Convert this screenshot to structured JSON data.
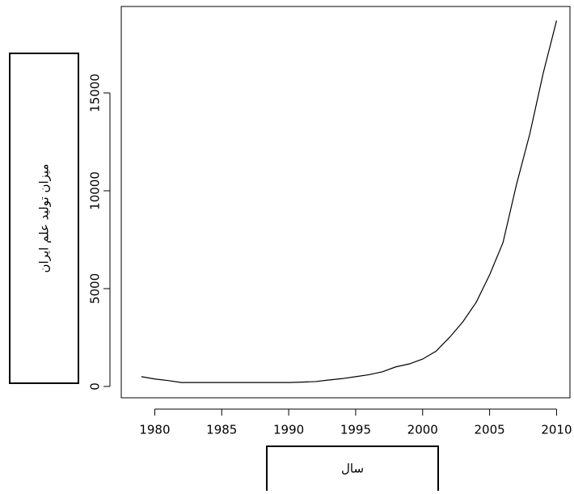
{
  "chart_data": {
    "type": "line",
    "x_label": "سال",
    "y_label": "میزان تولید علم ایران",
    "x": [
      1979,
      1980,
      1981,
      1982,
      1983,
      1984,
      1985,
      1986,
      1987,
      1988,
      1989,
      1990,
      1991,
      1992,
      1993,
      1994,
      1995,
      1996,
      1997,
      1998,
      1999,
      2000,
      2001,
      2002,
      2003,
      2004,
      2005,
      2006,
      2007,
      2008,
      2009,
      2010
    ],
    "values": [
      500,
      380,
      300,
      200,
      200,
      200,
      200,
      200,
      200,
      200,
      200,
      200,
      220,
      250,
      330,
      400,
      500,
      600,
      750,
      1000,
      1150,
      1400,
      1800,
      2500,
      3300,
      4300,
      5700,
      7350,
      10300,
      12900,
      16000,
      18700
    ],
    "color": "#000000",
    "xlim": [
      1977.5,
      2011
    ],
    "ylim": [
      -580,
      19420
    ],
    "xticks": [
      1980,
      1985,
      1990,
      1995,
      2000,
      2005,
      2010
    ],
    "yticks": [
      0,
      5000,
      10000,
      15000
    ]
  }
}
